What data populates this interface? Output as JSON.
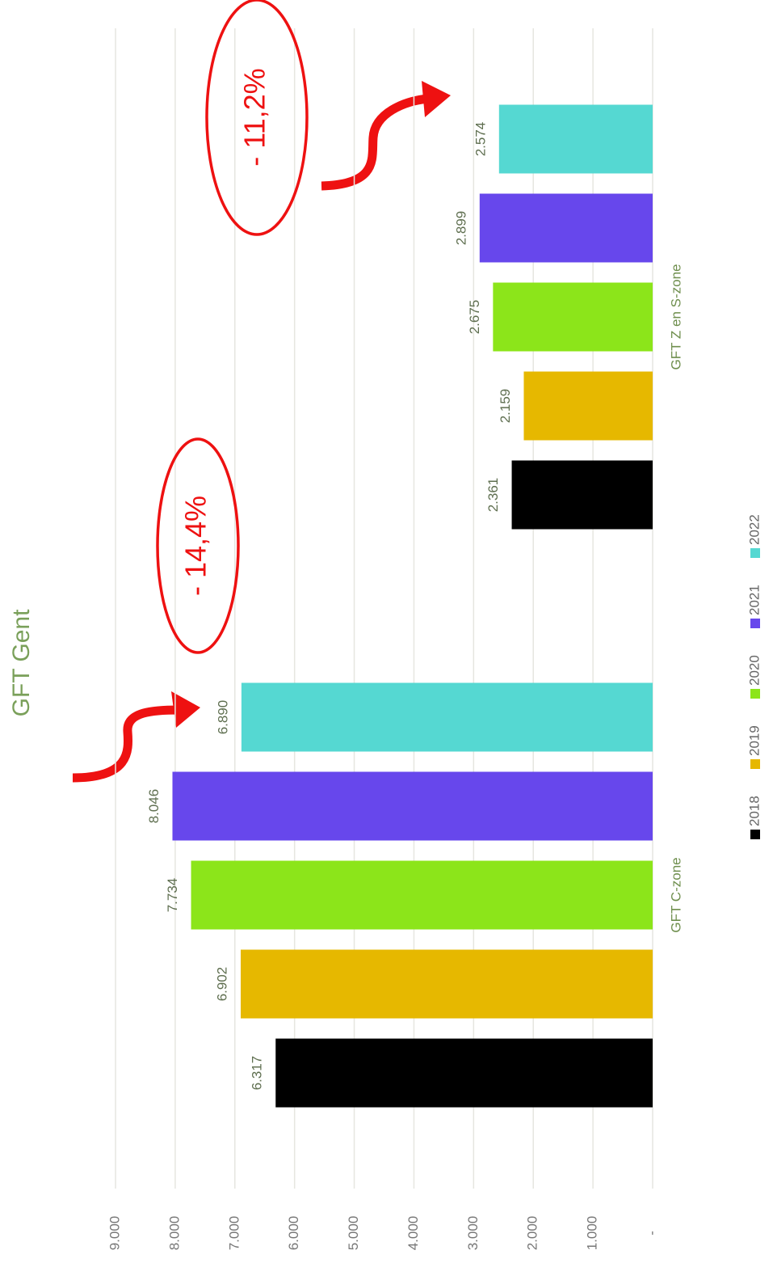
{
  "chart_data": {
    "type": "bar",
    "title": "GFT Gent",
    "categories": [
      "GFT C-zone",
      "GFT Z en S-zone"
    ],
    "series": [
      {
        "name": "2018",
        "color": "#000000",
        "values": [
          6317,
          2361
        ],
        "value_labels": [
          "6.317",
          "2.361"
        ]
      },
      {
        "name": "2019",
        "color": "#e6b800",
        "values": [
          6902,
          2159
        ],
        "value_labels": [
          "6.902",
          "2.159"
        ]
      },
      {
        "name": "2020",
        "color": "#8ce51a",
        "values": [
          7734,
          2675
        ],
        "value_labels": [
          "7.734",
          "2.675"
        ]
      },
      {
        "name": "2021",
        "color": "#6747ec",
        "values": [
          8046,
          2899
        ],
        "value_labels": [
          "8.046",
          "2.899"
        ]
      },
      {
        "name": "2022",
        "color": "#55d8d2",
        "values": [
          6890,
          2574
        ],
        "value_labels": [
          "6.890",
          "2.574"
        ]
      }
    ],
    "ylim": [
      0,
      9000
    ],
    "yticks": [
      {
        "value": 0,
        "label": "-"
      },
      {
        "value": 1000,
        "label": "1.000"
      },
      {
        "value": 2000,
        "label": "2.000"
      },
      {
        "value": 3000,
        "label": "3.000"
      },
      {
        "value": 4000,
        "label": "4.000"
      },
      {
        "value": 5000,
        "label": "5.000"
      },
      {
        "value": 6000,
        "label": "6.000"
      },
      {
        "value": 7000,
        "label": "7.000"
      },
      {
        "value": 8000,
        "label": "8.000"
      },
      {
        "value": 9000,
        "label": "9.000"
      }
    ],
    "grid": true,
    "annotations": [
      "- 14,4%",
      "- 11,2%"
    ]
  }
}
